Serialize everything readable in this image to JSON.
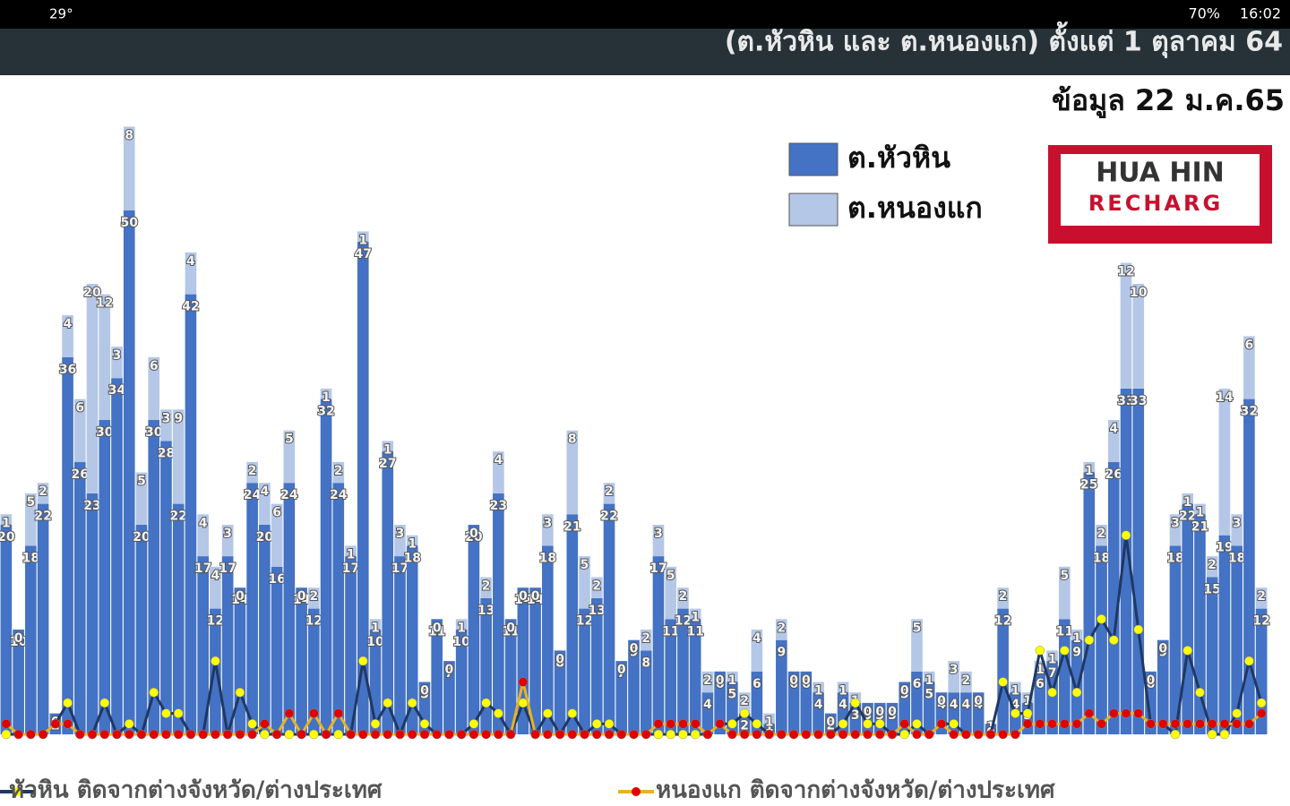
{
  "status_bar": {
    "temperature": "29°",
    "battery": "70%",
    "time": "16:02"
  },
  "logo": {
    "line1": "HUA HIN",
    "line2": "RECHARG"
  },
  "chart_data": {
    "type": "bar",
    "stacked": true,
    "title": "(ต.หัวหิน และ ต.หนองแก) ตั้งแต่ 1 ตุลาคม 64",
    "subtitle": "ข้อมูล 22 ม.ค.65",
    "series": [
      {
        "name": "ต.หัวหิน",
        "color": "#4472c4",
        "values": [
          20,
          10,
          18,
          22,
          2,
          36,
          26,
          23,
          30,
          34,
          50,
          20,
          30,
          28,
          22,
          42,
          17,
          12,
          17,
          14,
          24,
          20,
          16,
          24,
          14,
          12,
          32,
          24,
          17,
          47,
          10,
          27,
          17,
          18,
          5,
          11,
          7,
          10,
          20,
          13,
          23,
          11,
          14,
          14,
          18,
          8,
          21,
          12,
          13,
          22,
          7,
          9,
          8,
          17,
          11,
          12,
          11,
          4,
          6,
          5,
          2,
          6,
          1,
          9,
          6,
          6,
          4,
          2,
          4,
          3,
          3,
          3,
          3,
          5,
          6,
          5,
          4,
          4,
          4,
          4,
          1,
          12,
          4,
          3,
          6,
          7,
          11,
          9,
          25,
          18,
          26,
          33,
          33,
          6,
          9,
          18,
          22,
          21,
          15,
          19,
          18,
          32,
          12
        ]
      },
      {
        "name": "ต.หนองแก",
        "color": "#b4c7e7",
        "values": [
          1,
          0,
          5,
          2,
          0,
          4,
          6,
          20,
          12,
          3,
          8,
          5,
          6,
          3,
          9,
          4,
          4,
          4,
          3,
          0,
          2,
          4,
          6,
          5,
          0,
          2,
          1,
          2,
          1,
          1,
          1,
          1,
          3,
          1,
          0,
          0,
          0,
          1,
          0,
          2,
          4,
          0,
          0,
          0,
          3,
          0,
          8,
          5,
          2,
          2,
          0,
          0,
          2,
          3,
          5,
          2,
          1,
          2,
          0,
          1,
          2,
          4,
          1,
          2,
          0,
          0,
          1,
          0,
          1,
          1,
          0,
          0,
          0,
          0,
          5,
          1,
          0,
          3,
          2,
          0,
          0,
          2,
          1,
          1,
          1,
          1,
          5,
          1,
          1,
          2,
          4,
          12,
          10,
          0,
          0,
          3,
          1,
          1,
          2,
          14,
          3,
          6,
          2
        ]
      }
    ],
    "line_series": [
      {
        "name": "หัวหิน ติดจากต่างจังหวัด/ต่างประเทศ",
        "color": "#1f3864",
        "marker_color": "#ffff00",
        "values": [
          0,
          0,
          0,
          0,
          1,
          3,
          0,
          0,
          3,
          0,
          1,
          0,
          4,
          2,
          2,
          0,
          0,
          7,
          0,
          4,
          1,
          0,
          0,
          0,
          0,
          0,
          0,
          0,
          0,
          7,
          1,
          3,
          0,
          3,
          1,
          0,
          0,
          0,
          1,
          3,
          2,
          0,
          3,
          0,
          2,
          0,
          2,
          0,
          1,
          1,
          0,
          0,
          0,
          0,
          0,
          0,
          0,
          0,
          1,
          1,
          2,
          1,
          0,
          0,
          0,
          0,
          0,
          0,
          1,
          3,
          1,
          1,
          0,
          0,
          1,
          0,
          1,
          1,
          0,
          0,
          0,
          5,
          2,
          2,
          8,
          4,
          8,
          4,
          9,
          11,
          9,
          19,
          10,
          1,
          1,
          0,
          8,
          4,
          0,
          0,
          2,
          7,
          3
        ]
      },
      {
        "name": "หนองแก ติดจากต่างจังหวัด/ต่างประเทศ",
        "color": "#e6b422",
        "marker_color": "#e00000",
        "values": [
          1,
          0,
          0,
          0,
          1,
          1,
          0,
          0,
          0,
          0,
          0,
          0,
          0,
          0,
          0,
          0,
          0,
          0,
          0,
          0,
          0,
          1,
          0,
          2,
          0,
          2,
          0,
          2,
          0,
          0,
          0,
          0,
          0,
          0,
          0,
          0,
          0,
          0,
          0,
          0,
          0,
          0,
          5,
          0,
          0,
          0,
          0,
          0,
          0,
          0,
          0,
          0,
          0,
          1,
          1,
          1,
          1,
          0,
          1,
          0,
          0,
          0,
          0,
          0,
          0,
          0,
          0,
          0,
          0,
          0,
          0,
          0,
          0,
          1,
          0,
          0,
          1,
          0,
          0,
          0,
          0,
          0,
          0,
          1,
          1,
          1,
          1,
          1,
          2,
          1,
          2,
          2,
          2,
          1,
          1,
          1,
          1,
          1,
          1,
          1,
          1,
          1,
          2
        ]
      }
    ]
  }
}
